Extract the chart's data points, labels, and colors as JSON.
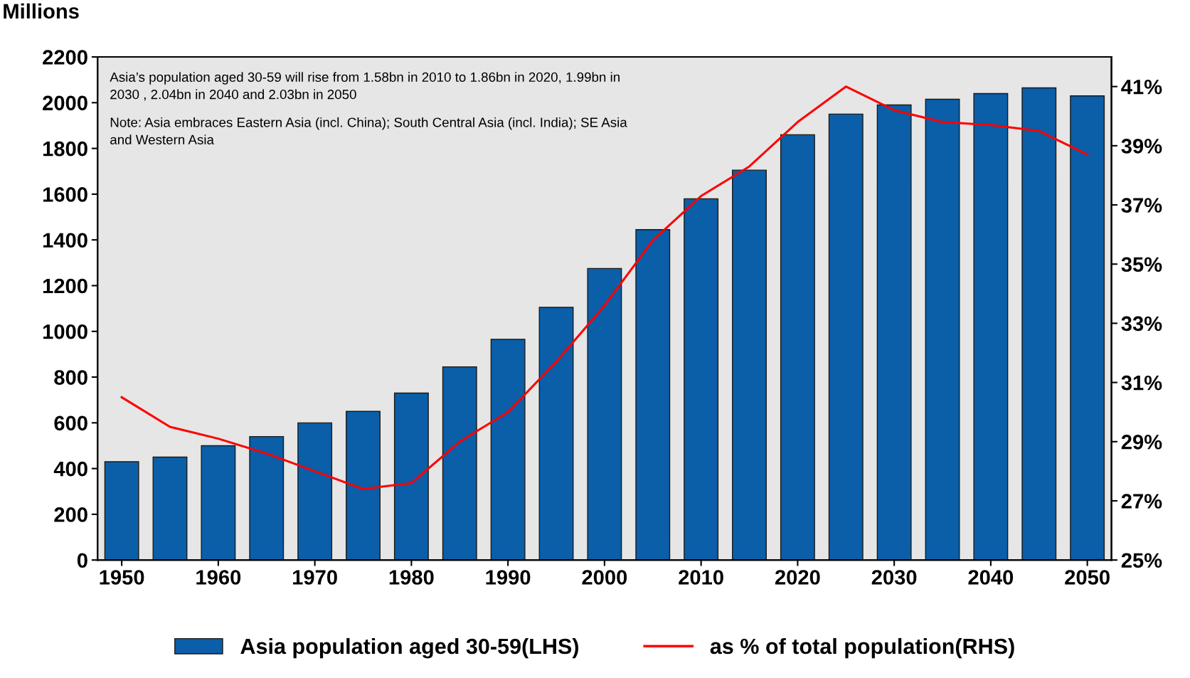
{
  "chart_data": {
    "type": "bar",
    "x": [
      1950,
      1955,
      1960,
      1965,
      1970,
      1975,
      1980,
      1985,
      1990,
      1995,
      2000,
      2005,
      2010,
      2015,
      2020,
      2025,
      2030,
      2035,
      2040,
      2045,
      2050
    ],
    "series": [
      {
        "name": "Asia population aged 30-59(LHS)",
        "color": "#0b5ea8",
        "values": [
          430,
          450,
          500,
          540,
          600,
          650,
          730,
          845,
          965,
          1105,
          1275,
          1445,
          1580,
          1705,
          1860,
          1950,
          1990,
          2015,
          2040,
          2065,
          2030
        ]
      },
      {
        "name": "as % of total population(RHS)",
        "type": "line",
        "axis": "y2",
        "color": "#ff0000",
        "values": [
          30.5,
          29.5,
          29.1,
          28.6,
          28.0,
          27.4,
          27.6,
          29.0,
          30.0,
          31.7,
          33.6,
          35.8,
          37.3,
          38.3,
          39.8,
          41.0,
          40.2,
          39.8,
          39.7,
          39.5,
          38.7
        ]
      }
    ],
    "ylabel": "Millions",
    "xlim": [
      1947.5,
      2052.5
    ],
    "xticks": [
      1950,
      1960,
      1970,
      1980,
      1990,
      2000,
      2010,
      2020,
      2030,
      2040,
      2050
    ],
    "ylim": [
      0,
      2200
    ],
    "yticks": [
      0,
      200,
      400,
      600,
      800,
      1000,
      1200,
      1400,
      1600,
      1800,
      2000,
      2200
    ],
    "y2lim": [
      25,
      42
    ],
    "y2ticks": [
      {
        "value": 25,
        "label": "25%"
      },
      {
        "value": 27,
        "label": "27%"
      },
      {
        "value": 29,
        "label": "29%"
      },
      {
        "value": 31,
        "label": "31%"
      },
      {
        "value": 33,
        "label": "33%"
      },
      {
        "value": 35,
        "label": "35%"
      },
      {
        "value": 37,
        "label": "37%"
      },
      {
        "value": 39,
        "label": "39%"
      },
      {
        "value": 41,
        "label": "41%"
      }
    ],
    "annotations": [
      "Asia’s population aged 30-59 will rise from 1.58bn in 2010 to 1.86bn in 2020, 1.99bn in\n2030 , 2.04bn in 2040 and 2.03bn in 2050",
      "Note: Asia embraces Eastern Asia (incl. China); South Central Asia (incl. India); SE Asia\nand Western Asia"
    ],
    "grid": false,
    "legend": "bottom"
  }
}
